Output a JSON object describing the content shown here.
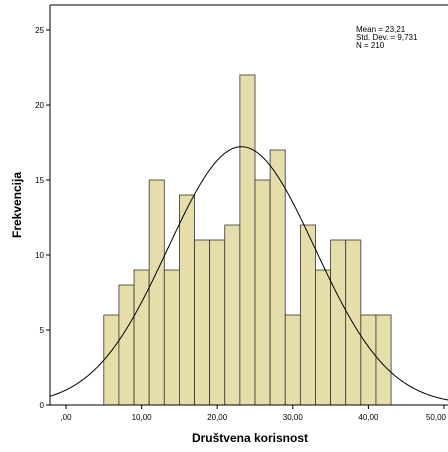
{
  "chart_data": {
    "type": "bar",
    "subtype": "histogram",
    "xlabel": "Društvena korisnost",
    "ylabel": "Frekvencija",
    "xlim": [
      -4,
      52
    ],
    "ylim": [
      0,
      26
    ],
    "x_ticks": [
      0,
      10,
      20,
      30,
      40,
      50
    ],
    "x_tick_labels": [
      ",00",
      "10,00",
      "20,00",
      "30,00",
      "40,00",
      "50,00"
    ],
    "y_ticks": [
      0,
      5,
      10,
      15,
      20,
      25
    ],
    "y_tick_labels": [
      "0",
      "5",
      "10",
      "15",
      "20",
      "25"
    ],
    "bin_width": 2,
    "bins": [
      {
        "x_start": 5,
        "x_end": 7,
        "count": 6
      },
      {
        "x_start": 7,
        "x_end": 9,
        "count": 8
      },
      {
        "x_start": 9,
        "x_end": 11,
        "count": 9
      },
      {
        "x_start": 11,
        "x_end": 13,
        "count": 15
      },
      {
        "x_start": 13,
        "x_end": 15,
        "count": 9
      },
      {
        "x_start": 15,
        "x_end": 17,
        "count": 14
      },
      {
        "x_start": 17,
        "x_end": 19,
        "count": 11
      },
      {
        "x_start": 19,
        "x_end": 21,
        "count": 11
      },
      {
        "x_start": 21,
        "x_end": 23,
        "count": 12
      },
      {
        "x_start": 23,
        "x_end": 25,
        "count": 22
      },
      {
        "x_start": 25,
        "x_end": 27,
        "count": 15
      },
      {
        "x_start": 27,
        "x_end": 29,
        "count": 17
      },
      {
        "x_start": 29,
        "x_end": 31,
        "count": 6
      },
      {
        "x_start": 31,
        "x_end": 33,
        "count": 12
      },
      {
        "x_start": 33,
        "x_end": 35,
        "count": 9
      },
      {
        "x_start": 35,
        "x_end": 37,
        "count": 11
      },
      {
        "x_start": 37,
        "x_end": 39,
        "count": 11
      },
      {
        "x_start": 39,
        "x_end": 41,
        "count": 6
      },
      {
        "x_start": 41,
        "x_end": 43,
        "count": 6
      }
    ],
    "normal_curve": {
      "mean": 23.21,
      "std_dev": 9.731,
      "n": 210
    },
    "stats_text": {
      "mean": "Mean = 23,21",
      "std_dev": "Std. Dev. = 9,731",
      "n": "N = 210"
    },
    "grid": false,
    "colors": {
      "bar_fill": "#e6deaa",
      "bar_stroke": "#333333",
      "curve": "#000000",
      "plot_background": "#ffffff",
      "axis": "#000000"
    }
  }
}
